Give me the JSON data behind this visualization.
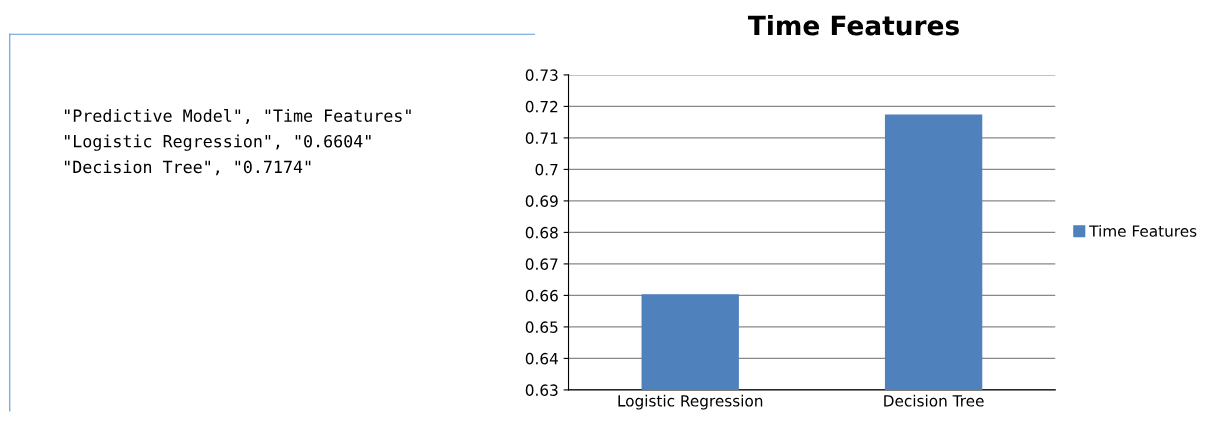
{
  "chart_data": [
    {
      "type": "other",
      "annotations": [
        "\"Predictive Model\", \"Time Features\"",
        "\"Logistic Regression\", \"0.6604\"",
        "\"Decision Tree\", \"0.7174\""
      ]
    },
    {
      "type": "bar",
      "title": "Time Features",
      "categories": [
        "Logistic Regression",
        "Decision Tree"
      ],
      "series": [
        {
          "name": "Time Features",
          "color": "#4f81bd",
          "values": [
            0.6604,
            0.7174
          ]
        }
      ],
      "ylim": [
        0.63,
        0.73
      ],
      "yticks": [
        0.63,
        0.64,
        0.65,
        0.66,
        0.67,
        0.68,
        0.69,
        0.7,
        0.71,
        0.72,
        0.73
      ],
      "grid": "y",
      "legend": "right"
    }
  ]
}
